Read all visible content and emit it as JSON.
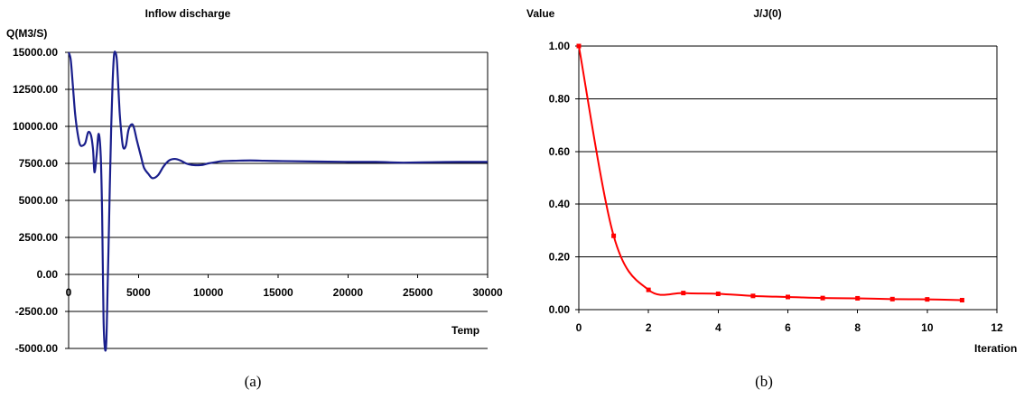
{
  "chart_data": [
    {
      "type": "line",
      "title": "Inflow discharge",
      "ylabel": "Q(M3/S)",
      "xlabel": "Temp",
      "caption": "(a)",
      "xlim": [
        0,
        30000
      ],
      "ylim": [
        -5000,
        15000
      ],
      "x_ticks": [
        "0",
        "5000",
        "10000",
        "15000",
        "20000",
        "25000",
        "30000"
      ],
      "y_ticks": [
        "15000.00",
        "12500.00",
        "10000.00",
        "7500.00",
        "5000.00",
        "2500.00",
        "0.00",
        "-2500.00",
        "-5000.00"
      ],
      "grid": true,
      "color": "#1a1f8c",
      "series": [
        {
          "x": [
            0,
            150,
            300,
            450,
            600,
            800,
            1000,
            1200,
            1400,
            1600,
            1750,
            1850,
            2000,
            2150,
            2300,
            2400,
            2500,
            2600,
            2700,
            2800,
            2850,
            2950,
            3050,
            3150,
            3250,
            3350,
            3450,
            3550,
            3650,
            3750,
            3900,
            4100,
            4300,
            4600,
            4900,
            5200,
            5400,
            5700,
            6000,
            6400,
            6800,
            7200,
            7600,
            8000,
            8400,
            8800,
            9200,
            9600,
            10000,
            10500,
            11000,
            12000,
            13000,
            14000,
            15000,
            16000,
            18000,
            20000,
            22000,
            23000,
            24000,
            26000,
            28000,
            30000
          ],
          "y": [
            15000,
            14500,
            12800,
            11000,
            9800,
            8800,
            8700,
            8900,
            9600,
            9400,
            8400,
            6900,
            8000,
            9500,
            8000,
            4000,
            -3000,
            -5000,
            -4500,
            -500,
            1500,
            6000,
            10000,
            13000,
            14800,
            15000,
            14500,
            12800,
            11000,
            9800,
            8600,
            8700,
            9800,
            10100,
            9000,
            7900,
            7200,
            6800,
            6500,
            6700,
            7300,
            7700,
            7800,
            7700,
            7500,
            7400,
            7380,
            7400,
            7500,
            7580,
            7650,
            7680,
            7700,
            7680,
            7660,
            7650,
            7620,
            7600,
            7600,
            7570,
            7550,
            7580,
            7600,
            7600
          ]
        }
      ]
    },
    {
      "type": "line",
      "title": "J/J(0)",
      "ylabel": "Value",
      "xlabel": "Iteration",
      "caption": "(b)",
      "xlim": [
        0,
        12
      ],
      "ylim": [
        0,
        1
      ],
      "x_ticks": [
        "0",
        "2",
        "4",
        "6",
        "8",
        "10",
        "12"
      ],
      "y_ticks": [
        "1.00",
        "0.80",
        "0.60",
        "0.40",
        "0.20",
        "0.00"
      ],
      "grid": true,
      "color": "#ff0000",
      "series": [
        {
          "x": [
            0,
            1,
            2,
            3,
            4,
            5,
            6,
            7,
            8,
            9,
            10,
            11
          ],
          "y": [
            1.0,
            0.28,
            0.075,
            0.063,
            0.06,
            0.052,
            0.048,
            0.044,
            0.043,
            0.04,
            0.039,
            0.036
          ]
        }
      ]
    }
  ]
}
